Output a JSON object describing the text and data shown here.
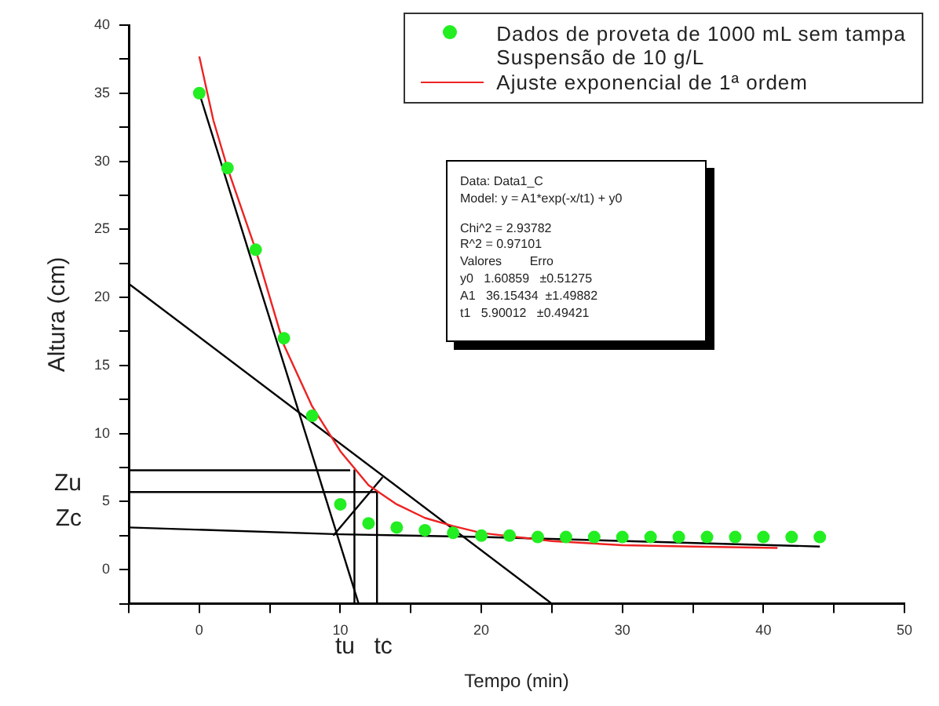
{
  "chart_data": {
    "type": "scatter",
    "xlabel": "Tempo (min)",
    "ylabel": "Altura (cm)",
    "xlim": [
      -5,
      50
    ],
    "ylim": [
      -2.5,
      40
    ],
    "xticks": [
      {
        "value": -5,
        "label": null
      },
      0,
      {
        "value": 5,
        "label": null
      },
      10,
      {
        "value": 15,
        "label": null
      },
      20,
      {
        "value": 25,
        "label": null
      },
      30,
      {
        "value": 35,
        "label": null
      },
      40,
      {
        "value": 45,
        "label": null
      },
      50
    ],
    "yticks": [
      {
        "value": -2.5,
        "label": null
      },
      0,
      {
        "value": 2.5,
        "label": null
      },
      5,
      {
        "value": 7.5,
        "label": null
      },
      10,
      {
        "value": 12.5,
        "label": null
      },
      15,
      {
        "value": 17.5,
        "label": null
      },
      20,
      {
        "value": 22.5,
        "label": null
      },
      25,
      {
        "value": 27.5,
        "label": null
      },
      30,
      {
        "value": 32.5,
        "label": null
      },
      35,
      {
        "value": 37.5,
        "label": null
      },
      40
    ],
    "grid": false,
    "legend": "top right",
    "line_style": "solid",
    "series": [
      {
        "marker": "circle",
        "name": "Dados de proveta de 1000 mL sem tampa\nSuspensão de 10 g/L",
        "color": "#22ee22",
        "x": [
          0,
          2,
          4,
          6,
          8,
          10,
          12,
          14,
          16,
          18,
          20,
          22,
          24,
          26,
          28,
          30,
          32,
          34,
          36,
          38,
          40,
          42,
          44
        ],
        "values": [
          35,
          29.5,
          23.5,
          17,
          11.3,
          4.8,
          3.4,
          3.1,
          2.9,
          2.7,
          2.5,
          2.5,
          2.4,
          2.4,
          2.4,
          2.4,
          2.4,
          2.4,
          2.4,
          2.4,
          2.4,
          2.4,
          2.4
        ]
      },
      {
        "type": "line",
        "name": "Ajuste exponencial de 1ª ordem",
        "color": "#ee2222",
        "x": [
          0,
          1,
          2,
          4,
          6,
          8,
          10,
          12,
          14,
          16,
          18,
          20,
          25,
          30,
          35,
          41
        ],
        "values": [
          37.7,
          33,
          29.5,
          23.5,
          16.5,
          12,
          8.7,
          6.2,
          4.8,
          3.8,
          3.2,
          2.7,
          2.1,
          1.8,
          1.7,
          1.6
        ]
      },
      {
        "type": "line",
        "color": "#000000",
        "x": [
          0,
          11.3
        ],
        "values": [
          35,
          -2.5
        ]
      },
      {
        "type": "line",
        "color": "#000000",
        "x": [
          -5,
          25
        ],
        "values": [
          21,
          -2.5
        ]
      },
      {
        "type": "line",
        "color": "#000000",
        "x": [
          -5,
          10.7
        ],
        "values": [
          7.3,
          7.3
        ]
      },
      {
        "type": "line",
        "color": "#000000",
        "x": [
          -5,
          12.6
        ],
        "values": [
          5.7,
          5.7
        ]
      },
      {
        "type": "line",
        "color": "#000000",
        "x": [
          -5,
          10,
          20,
          44
        ],
        "values": [
          3.1,
          2.6,
          2.4,
          1.7
        ]
      },
      {
        "type": "line",
        "color": "#000000",
        "x": [
          11,
          11
        ],
        "values": [
          7.3,
          -2.5
        ]
      },
      {
        "type": "line",
        "color": "#000000",
        "x": [
          12.6,
          12.6
        ],
        "values": [
          5.7,
          -2.5
        ]
      },
      {
        "type": "line",
        "color": "#000000",
        "x": [
          9.5,
          13
        ],
        "values": [
          2.5,
          6.8
        ]
      }
    ],
    "annotations": [
      {
        "text": "Zu",
        "x": -5,
        "y": 5.7
      },
      {
        "text": "Zc",
        "x": -5,
        "y": 3.1
      },
      {
        "text": "tu",
        "x": 11,
        "y": -2.5
      },
      {
        "text": "tc",
        "x": 12.6,
        "y": -2.5
      },
      "Data: Data1_C",
      "Model: y = A1*exp(-x/t1) + y0",
      "Chi^2 = 2.93782",
      "R^2 = 0.97101",
      "Valores        Erro",
      "y0   1.60859   ±0.51275",
      "A1   36.15434  ±1.49882",
      "t1   5.90012   ±0.49421"
    ]
  }
}
